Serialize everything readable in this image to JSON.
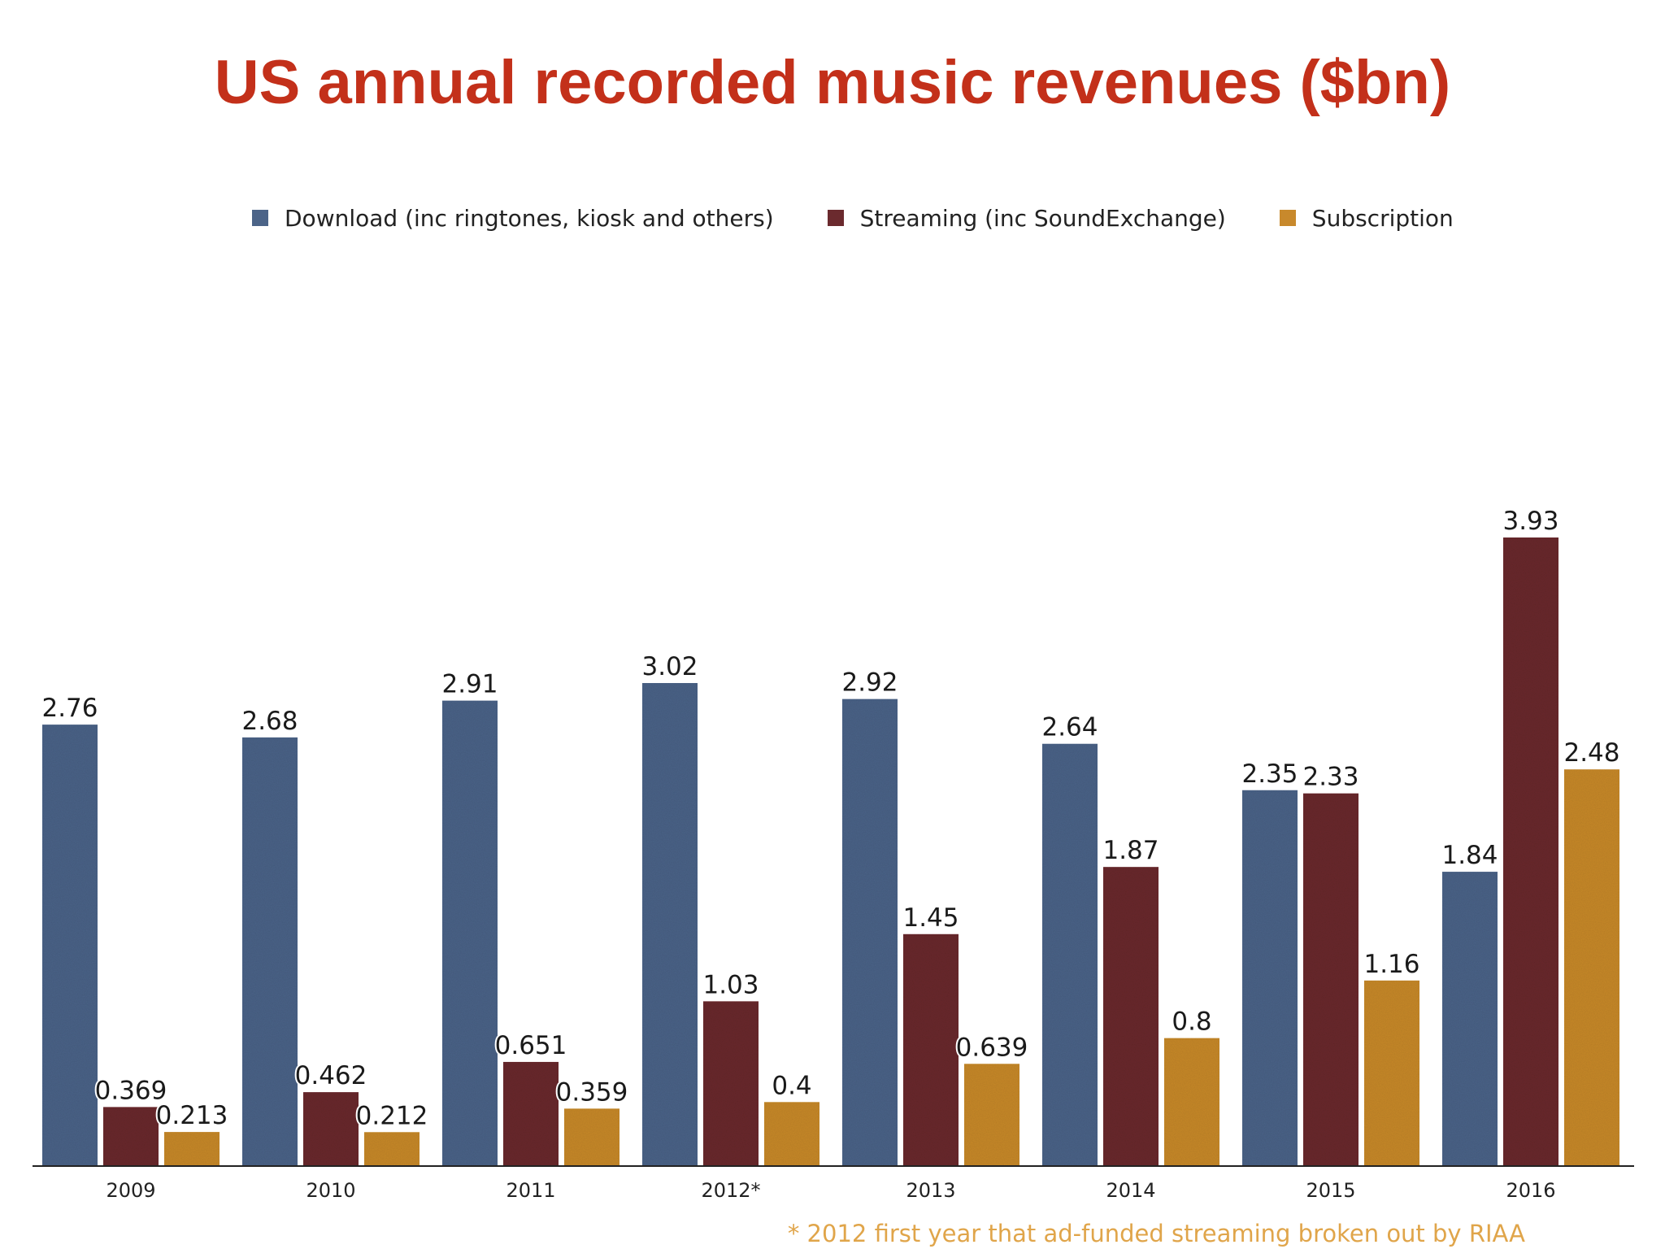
{
  "chart_data": {
    "type": "bar",
    "title": "US annual recorded music revenues ($bn)",
    "xlabel": "",
    "ylabel": "",
    "ylim": [
      0,
      4.3
    ],
    "grid": false,
    "legend_position": "top",
    "categories": [
      "2009",
      "2010",
      "2011",
      "2012*",
      "2013",
      "2014",
      "2015",
      "2016"
    ],
    "series": [
      {
        "name": "Download (inc ringtones, kiosk and others)",
        "color": "#4c6488",
        "values": [
          2.76,
          2.68,
          2.91,
          3.02,
          2.92,
          2.64,
          2.35,
          1.84
        ],
        "labels": [
          "2.76",
          "2.68",
          "2.91",
          "3.02",
          "2.92",
          "2.64",
          "2.35",
          "1.84"
        ]
      },
      {
        "name": "Streaming (inc SoundExchange)",
        "color": "#6b2a2e",
        "values": [
          0.369,
          0.462,
          0.651,
          1.03,
          1.45,
          1.87,
          2.33,
          3.93
        ],
        "labels": [
          "0.369",
          "0.462",
          "0.651",
          "1.03",
          "1.45",
          "1.87",
          "2.33",
          "3.93"
        ]
      },
      {
        "name": "Subscription",
        "color": "#c8892c",
        "values": [
          0.213,
          0.212,
          0.359,
          0.4,
          0.639,
          0.8,
          1.16,
          2.48
        ],
        "labels": [
          "0.213",
          "0.212",
          "0.359",
          "0.4",
          "0.639",
          "0.8",
          "1.16",
          "2.48"
        ]
      }
    ],
    "footnote": "* 2012 first year that ad-funded streaming broken out by RIAA",
    "colors": {
      "title": "#c3301a",
      "footnote": "#e0a54a",
      "axis": "#222222"
    }
  }
}
